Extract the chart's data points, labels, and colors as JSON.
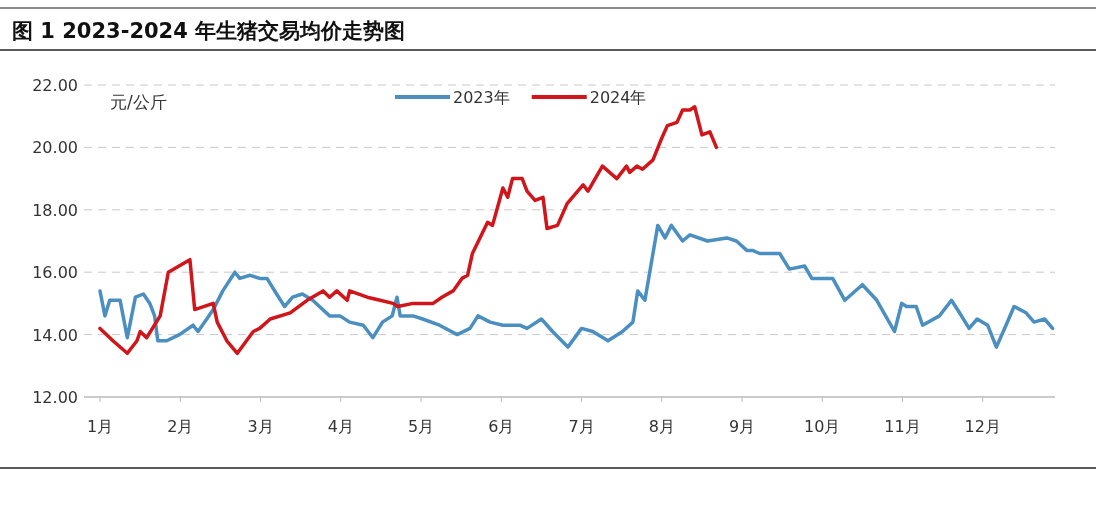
{
  "chart_data": {
    "type": "line",
    "title": "图 1 2023-2024 年生猪交易均价走势图",
    "ylabel": "元/公斤",
    "xlim": [
      0.8,
      12.9
    ],
    "xticks": [
      {
        "value": 1,
        "label": "1月"
      },
      {
        "value": 2,
        "label": "2月"
      },
      {
        "value": 3,
        "label": "3月"
      },
      {
        "value": 4,
        "label": "4月"
      },
      {
        "value": 5,
        "label": "5月"
      },
      {
        "value": 6,
        "label": "6月"
      },
      {
        "value": 7,
        "label": "7月"
      },
      {
        "value": 8,
        "label": "8月"
      },
      {
        "value": 9,
        "label": "9月"
      },
      {
        "value": 10,
        "label": "10月"
      },
      {
        "value": 11,
        "label": "11月"
      },
      {
        "value": 12,
        "label": "12月"
      }
    ],
    "ylim": [
      12,
      22
    ],
    "yticks": [
      {
        "value": 12,
        "label": "12.00"
      },
      {
        "value": 14,
        "label": "14.00"
      },
      {
        "value": 16,
        "label": "16.00"
      },
      {
        "value": 18,
        "label": "18.00"
      },
      {
        "value": 20,
        "label": "20.00"
      },
      {
        "value": 22,
        "label": "22.00"
      }
    ],
    "grid": "y",
    "legend": "top",
    "marker": "none",
    "line_style": "solid",
    "series": [
      {
        "name": "2023年",
        "color": "#4a8fc0",
        "x": [
          1.0,
          1.06,
          1.12,
          1.25,
          1.34,
          1.44,
          1.54,
          1.62,
          1.68,
          1.72,
          1.83,
          1.99,
          2.16,
          2.22,
          2.33,
          2.41,
          2.53,
          2.68,
          2.74,
          2.87,
          2.99,
          3.08,
          3.2,
          3.3,
          3.4,
          3.52,
          3.65,
          3.86,
          3.99,
          4.11,
          4.28,
          4.4,
          4.52,
          4.64,
          4.7,
          4.74,
          4.9,
          5.02,
          5.23,
          5.45,
          5.61,
          5.71,
          5.86,
          6.02,
          6.23,
          6.32,
          6.5,
          6.64,
          6.83,
          7.0,
          7.14,
          7.33,
          7.51,
          7.64,
          7.7,
          7.79,
          7.95,
          8.04,
          8.12,
          8.26,
          8.35,
          8.57,
          8.81,
          8.93,
          9.06,
          9.13,
          9.22,
          9.47,
          9.59,
          9.78,
          9.87,
          10.13,
          10.28,
          10.5,
          10.68,
          10.9,
          10.99,
          11.05,
          11.17,
          11.25,
          11.46,
          11.61,
          11.71,
          11.83,
          11.93,
          12.06,
          12.17,
          12.29,
          12.39,
          12.54,
          12.64,
          12.77,
          12.87
        ],
        "values": [
          15.4,
          14.6,
          15.1,
          15.1,
          13.9,
          15.2,
          15.3,
          15.0,
          14.6,
          13.8,
          13.8,
          14.0,
          14.3,
          14.1,
          14.5,
          14.8,
          15.4,
          16.0,
          15.8,
          15.9,
          15.8,
          15.8,
          15.3,
          14.9,
          15.2,
          15.3,
          15.1,
          14.6,
          14.6,
          14.4,
          14.3,
          13.9,
          14.4,
          14.6,
          15.2,
          14.6,
          14.6,
          14.5,
          14.3,
          14.0,
          14.2,
          14.6,
          14.4,
          14.3,
          14.3,
          14.2,
          14.5,
          14.1,
          13.6,
          14.2,
          14.1,
          13.8,
          14.1,
          14.4,
          15.4,
          15.1,
          17.5,
          17.1,
          17.5,
          17.0,
          17.2,
          17.0,
          17.1,
          17.0,
          16.7,
          16.7,
          16.6,
          16.6,
          16.1,
          16.2,
          15.8,
          15.8,
          15.1,
          15.6,
          15.1,
          14.1,
          15.0,
          14.9,
          14.9,
          14.3,
          14.6,
          15.1,
          14.7,
          14.2,
          14.5,
          14.3,
          13.6,
          14.3,
          14.9,
          14.7,
          14.4,
          14.5,
          14.2
        ]
      },
      {
        "name": "2024年",
        "color": "#d0161b",
        "x": [
          1.0,
          1.16,
          1.34,
          1.46,
          1.5,
          1.58,
          1.75,
          1.85,
          2.12,
          2.18,
          2.41,
          2.46,
          2.58,
          2.71,
          2.91,
          2.99,
          3.12,
          3.37,
          3.58,
          3.78,
          3.86,
          3.95,
          4.08,
          4.11,
          4.33,
          4.49,
          4.65,
          4.71,
          4.9,
          5.15,
          5.26,
          5.4,
          5.51,
          5.58,
          5.64,
          5.83,
          5.89,
          6.02,
          6.08,
          6.14,
          6.26,
          6.32,
          6.42,
          6.52,
          6.57,
          6.7,
          6.82,
          7.02,
          7.08,
          7.26,
          7.44,
          7.56,
          7.6,
          7.69,
          7.76,
          7.89,
          8.0,
          8.07,
          8.19,
          8.26,
          8.35,
          8.41,
          8.5,
          8.6,
          8.68
        ],
        "values": [
          14.2,
          13.8,
          13.4,
          13.8,
          14.1,
          13.9,
          14.6,
          16.0,
          16.4,
          14.8,
          15.0,
          14.4,
          13.8,
          13.4,
          14.1,
          14.2,
          14.5,
          14.7,
          15.1,
          15.4,
          15.2,
          15.4,
          15.1,
          15.4,
          15.2,
          15.1,
          15.0,
          14.9,
          15.0,
          15.0,
          15.2,
          15.4,
          15.8,
          15.9,
          16.6,
          17.6,
          17.5,
          18.7,
          18.4,
          19.0,
          19.0,
          18.6,
          18.3,
          18.4,
          17.4,
          17.5,
          18.2,
          18.8,
          18.6,
          19.4,
          19.0,
          19.4,
          19.2,
          19.4,
          19.3,
          19.6,
          20.3,
          20.7,
          20.8,
          21.2,
          21.2,
          21.3,
          20.4,
          20.5,
          20.0
        ]
      }
    ]
  }
}
